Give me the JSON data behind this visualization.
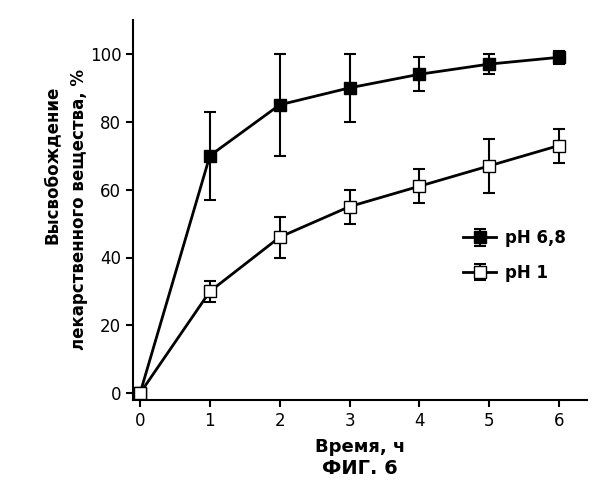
{
  "x": [
    0,
    1,
    2,
    3,
    4,
    5,
    6
  ],
  "ph68_y": [
    0,
    70,
    85,
    90,
    94,
    97,
    99
  ],
  "ph68_yerr": [
    0,
    13,
    15,
    10,
    5,
    3,
    2
  ],
  "ph1_y": [
    0,
    30,
    46,
    55,
    61,
    67,
    73
  ],
  "ph1_yerr": [
    0,
    3,
    6,
    5,
    5,
    8,
    5
  ],
  "xlabel": "Время, ч",
  "ylabel_line1": "Высвобождение",
  "ylabel_line2": "лекарственного вещества, %",
  "fig_label": "ФИГ. 6",
  "legend_ph68": "рН 6,8",
  "legend_ph1": "рН 1",
  "xlim": [
    -0.1,
    6.4
  ],
  "ylim": [
    -2,
    110
  ],
  "yticks": [
    0,
    20,
    40,
    60,
    80,
    100
  ],
  "xticks": [
    0,
    1,
    2,
    3,
    4,
    5,
    6
  ],
  "line_color": "#000000",
  "marker_size": 8,
  "line_width": 2.0,
  "bg_color": "#ffffff"
}
